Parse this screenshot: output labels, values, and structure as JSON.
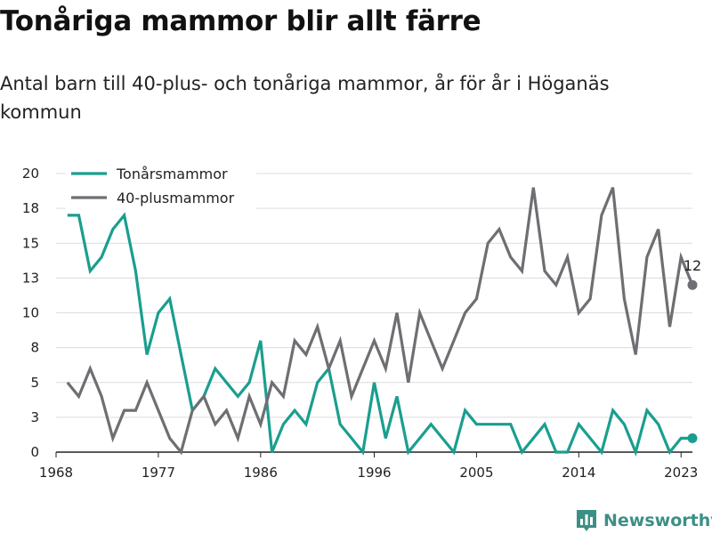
{
  "header": {
    "title": "Tonåriga mammor blir allt färre",
    "subtitle": "Antal barn till 40-plus- och tonåriga mammor, år för år i Höganäs kommun"
  },
  "brand": {
    "name": "Newsworthy",
    "icon": "newsworthy-chart-icon",
    "color": "#3c8f86"
  },
  "chart_data": {
    "type": "line",
    "title": "Tonåriga mammor blir allt färre",
    "subtitle": "Antal barn till 40-plus- och tonåriga mammor, år för år i Höganäs kommun",
    "xlabel": "",
    "ylabel": "",
    "xlim": [
      1968,
      2024
    ],
    "ylim": [
      0,
      20
    ],
    "x_ticks": [
      1968,
      1977,
      1986,
      1996,
      2005,
      2014,
      2023
    ],
    "y_ticks": [
      {
        "value": 0,
        "label": "0"
      },
      {
        "value": 2.5,
        "label": "3"
      },
      {
        "value": 5,
        "label": "5"
      },
      {
        "value": 7.5,
        "label": "8"
      },
      {
        "value": 10,
        "label": "10"
      },
      {
        "value": 12.5,
        "label": "13"
      },
      {
        "value": 15,
        "label": "15"
      },
      {
        "value": 17.5,
        "label": "18"
      },
      {
        "value": 20,
        "label": "20"
      }
    ],
    "grid": "horizontal",
    "legend_position": "top-left",
    "x": [
      1969,
      1970,
      1971,
      1972,
      1973,
      1974,
      1975,
      1976,
      1977,
      1978,
      1979,
      1980,
      1981,
      1982,
      1983,
      1984,
      1985,
      1986,
      1987,
      1988,
      1989,
      1990,
      1991,
      1992,
      1993,
      1994,
      1995,
      1996,
      1997,
      1998,
      1999,
      2000,
      2001,
      2002,
      2003,
      2004,
      2005,
      2006,
      2007,
      2008,
      2009,
      2010,
      2011,
      2012,
      2013,
      2014,
      2015,
      2016,
      2017,
      2018,
      2019,
      2020,
      2021,
      2022,
      2023,
      2024
    ],
    "series": [
      {
        "name": "Tonårsmammor",
        "color": "#1a9e8f",
        "values": [
          17,
          17,
          13,
          14,
          16,
          17,
          13,
          7,
          10,
          11,
          7,
          3,
          4,
          6,
          5,
          4,
          5,
          8,
          0,
          2,
          3,
          2,
          5,
          6,
          2,
          1,
          0,
          5,
          1,
          4,
          0,
          1,
          2,
          1,
          0,
          3,
          2,
          2,
          2,
          2,
          0,
          1,
          2,
          0,
          0,
          2,
          1,
          0,
          3,
          2,
          0,
          3,
          2,
          0,
          1,
          1
        ]
      },
      {
        "name": "40-plusmammor",
        "color": "#6e6e73",
        "values": [
          5,
          4,
          6,
          4,
          1,
          3,
          3,
          5,
          3,
          1,
          0,
          3,
          4,
          2,
          3,
          1,
          4,
          2,
          5,
          4,
          8,
          7,
          9,
          6,
          8,
          4,
          6,
          8,
          6,
          10,
          5,
          10,
          8,
          6,
          8,
          10,
          11,
          15,
          16,
          14,
          13,
          19,
          13,
          12,
          14,
          10,
          11,
          17,
          19,
          11,
          7,
          14,
          16,
          9,
          14,
          12
        ],
        "end_label": "12"
      }
    ]
  }
}
